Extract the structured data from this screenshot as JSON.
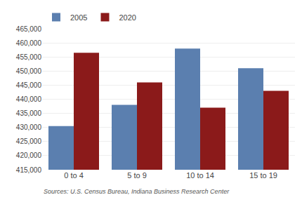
{
  "chart_data": {
    "type": "bar",
    "categories": [
      "0 to 4",
      "5 to 9",
      "10 to 14",
      "15 to 19"
    ],
    "series": [
      {
        "name": "2005",
        "color": "#5b7faf",
        "values": [
          430500,
          438000,
          458000,
          451000
        ]
      },
      {
        "name": "2020",
        "color": "#8b1a1a",
        "values": [
          456500,
          446000,
          437000,
          443000
        ]
      }
    ],
    "ylim": [
      415000,
      465000
    ],
    "yticks": [
      {
        "value": 415000,
        "label": "415,000"
      },
      {
        "value": 420000,
        "label": "420,000"
      },
      {
        "value": 425000,
        "label": "425,000"
      },
      {
        "value": 430000,
        "label": "430,000"
      },
      {
        "value": 435000,
        "label": "435,000"
      },
      {
        "value": 440000,
        "label": "440,000"
      },
      {
        "value": 445000,
        "label": "445,000"
      },
      {
        "value": 450000,
        "label": "450,000"
      },
      {
        "value": 455000,
        "label": "455,000"
      },
      {
        "value": 460000,
        "label": "460,000"
      },
      {
        "value": 465000,
        "label": "465,000"
      }
    ],
    "grid": true,
    "legend": "upper left",
    "annotations": [
      "Sources: U.S. Census Bureau, Indiana Business Research Center"
    ]
  }
}
